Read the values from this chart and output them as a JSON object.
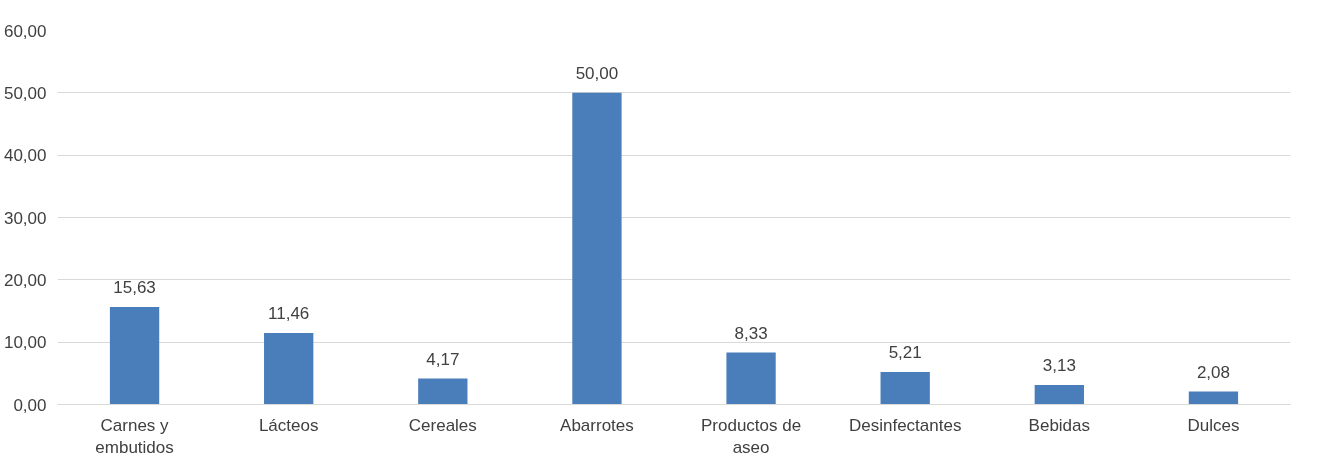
{
  "chart_data": {
    "type": "bar",
    "categories": [
      "Carnes y embutidos",
      "Lácteos",
      "Cereales",
      "Abarrotes",
      "Productos de aseo",
      "Desinfectantes",
      "Bebidas",
      "Dulces"
    ],
    "values": [
      15.63,
      11.46,
      4.17,
      50.0,
      8.33,
      5.21,
      3.13,
      2.08
    ],
    "value_labels": [
      "15,63",
      "11,46",
      "4,17",
      "50,00",
      "8,33",
      "5,21",
      "3,13",
      "2,08"
    ],
    "color": "#4a7ebb",
    "ylim": [
      0,
      60
    ],
    "yticks": [
      {
        "value": 0,
        "label": "0,00"
      },
      {
        "value": 10,
        "label": "10,00"
      },
      {
        "value": 20,
        "label": "20,00"
      },
      {
        "value": 30,
        "label": "30,00"
      },
      {
        "value": 40,
        "label": "40,00"
      },
      {
        "value": 50,
        "label": "50,00"
      },
      {
        "value": 60,
        "label": "60,00"
      }
    ],
    "grid": "y"
  }
}
